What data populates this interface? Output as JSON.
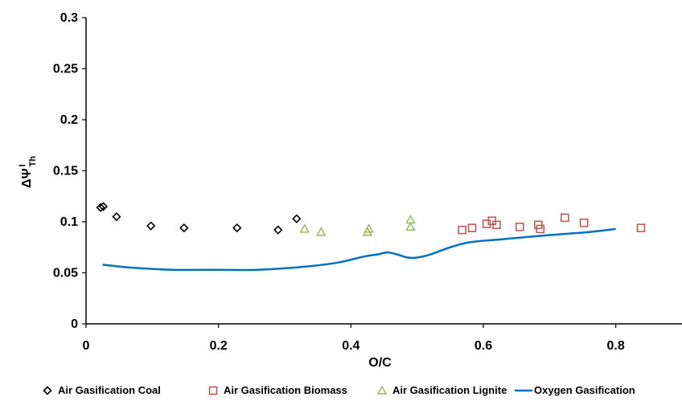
{
  "chart_data": {
    "type": "scatter",
    "title": "",
    "xlabel": "O/C",
    "ylabel": {
      "main": "ΔΨ",
      "sup": "I",
      "sub": "Th"
    },
    "xlim": [
      0,
      0.9
    ],
    "ylim": [
      0,
      0.3
    ],
    "x_ticks": [
      {
        "v": 0,
        "label": "0"
      },
      {
        "v": 0.2,
        "label": "0.2"
      },
      {
        "v": 0.4,
        "label": "0.4"
      },
      {
        "v": 0.6,
        "label": "0.6"
      },
      {
        "v": 0.8,
        "label": "0.8"
      }
    ],
    "y_ticks": [
      {
        "v": 0,
        "label": "0"
      },
      {
        "v": 0.05,
        "label": "0.05"
      },
      {
        "v": 0.1,
        "label": "0.1"
      },
      {
        "v": 0.15,
        "label": "0.15"
      },
      {
        "v": 0.2,
        "label": "0.2"
      },
      {
        "v": 0.25,
        "label": "0.25"
      },
      {
        "v": 0.3,
        "label": "0.3"
      }
    ],
    "grid": false,
    "legend_position": "bottom",
    "series": [
      {
        "name": "Air Gasification Coal",
        "kind": "scatter",
        "marker": "diamond",
        "color": "#000000",
        "points": [
          [
            0.022,
            0.114
          ],
          [
            0.026,
            0.115
          ],
          [
            0.046,
            0.105
          ],
          [
            0.098,
            0.096
          ],
          [
            0.148,
            0.094
          ],
          [
            0.228,
            0.094
          ],
          [
            0.29,
            0.092
          ],
          [
            0.318,
            0.103
          ]
        ]
      },
      {
        "name": "Air Gasification Biomass",
        "kind": "scatter",
        "marker": "square",
        "color": "#c0504d",
        "points": [
          [
            0.568,
            0.092
          ],
          [
            0.583,
            0.094
          ],
          [
            0.605,
            0.098
          ],
          [
            0.613,
            0.101
          ],
          [
            0.62,
            0.097
          ],
          [
            0.655,
            0.095
          ],
          [
            0.683,
            0.097
          ],
          [
            0.686,
            0.093
          ],
          [
            0.723,
            0.104
          ],
          [
            0.752,
            0.099
          ],
          [
            0.838,
            0.094
          ]
        ]
      },
      {
        "name": "Air Gasification Lignite",
        "kind": "scatter",
        "marker": "triangle",
        "color": "#9bbb59",
        "points": [
          [
            0.33,
            0.093
          ],
          [
            0.355,
            0.09
          ],
          [
            0.425,
            0.09
          ],
          [
            0.427,
            0.093
          ],
          [
            0.49,
            0.102
          ],
          [
            0.49,
            0.095
          ]
        ]
      },
      {
        "name": "Oxygen Gasification",
        "kind": "line",
        "color": "#0070c0",
        "points": [
          [
            0.025,
            0.058
          ],
          [
            0.07,
            0.055
          ],
          [
            0.13,
            0.053
          ],
          [
            0.2,
            0.053
          ],
          [
            0.26,
            0.053
          ],
          [
            0.33,
            0.056
          ],
          [
            0.38,
            0.06
          ],
          [
            0.42,
            0.066
          ],
          [
            0.44,
            0.068
          ],
          [
            0.455,
            0.07
          ],
          [
            0.47,
            0.068
          ],
          [
            0.485,
            0.065
          ],
          [
            0.5,
            0.065
          ],
          [
            0.52,
            0.068
          ],
          [
            0.55,
            0.075
          ],
          [
            0.58,
            0.08
          ],
          [
            0.63,
            0.083
          ],
          [
            0.7,
            0.087
          ],
          [
            0.76,
            0.09
          ],
          [
            0.8,
            0.093
          ]
        ]
      }
    ]
  }
}
